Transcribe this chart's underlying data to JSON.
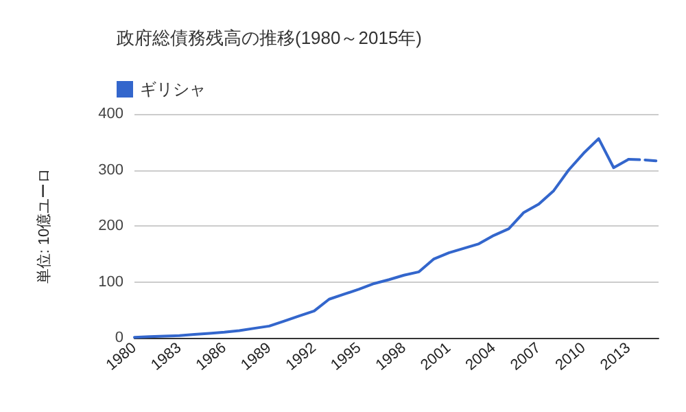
{
  "chart_data": {
    "type": "line",
    "title": "政府総債務残高の推移(1980～2015年)",
    "ylabel": "単位: 10億ユーロ",
    "categories": [
      "1980",
      null,
      null,
      "1983",
      null,
      null,
      "1986",
      null,
      null,
      "1989",
      null,
      null,
      "1992",
      null,
      null,
      "1995",
      null,
      null,
      "1998",
      null,
      null,
      "2001",
      null,
      null,
      "2004",
      null,
      null,
      "2007",
      null,
      null,
      "2010",
      null,
      null,
      "2013",
      null,
      null
    ],
    "series": [
      {
        "name": "ギリシャ",
        "color": "#3366cc",
        "line_style": "solid",
        "values": [
          1,
          2,
          3,
          4,
          6,
          8,
          10,
          13,
          17,
          21,
          30,
          39,
          48,
          69,
          78,
          87,
          97,
          104,
          112,
          118,
          141,
          152,
          160,
          168,
          183,
          195,
          224,
          239,
          263,
          300,
          330,
          356,
          304,
          319,
          null,
          null
        ]
      },
      {
        "color": "#3366cc",
        "line_style": "dashed",
        "values": [
          null,
          null,
          null,
          null,
          null,
          null,
          null,
          null,
          null,
          null,
          null,
          null,
          null,
          null,
          null,
          null,
          null,
          null,
          null,
          null,
          null,
          null,
          null,
          null,
          null,
          null,
          null,
          null,
          null,
          null,
          null,
          null,
          null,
          319,
          318,
          316
        ]
      }
    ],
    "ylim": [
      0,
      400
    ],
    "yticks": [
      0,
      100,
      200,
      300,
      400
    ],
    "grid": "y",
    "legend": "top left",
    "marker": "none"
  }
}
